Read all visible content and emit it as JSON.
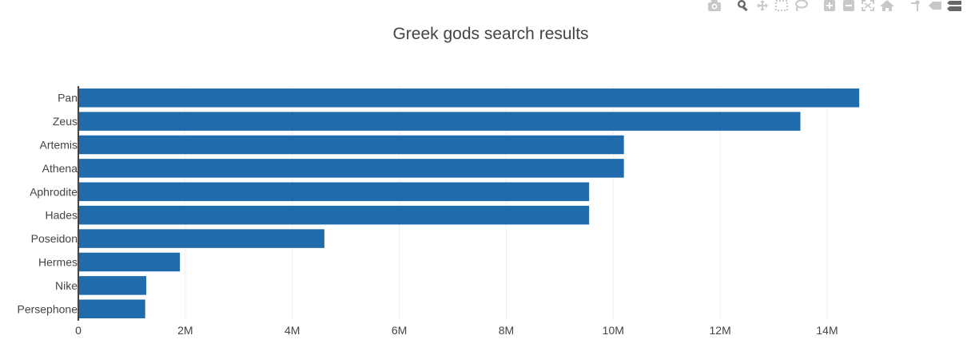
{
  "colors": {
    "bar": "#1f6bab",
    "grid": "#eeeeee",
    "axis": "#444444",
    "text": "#444444",
    "modebar": "#c8c8c8"
  },
  "modebar": {
    "icons": [
      "camera-icon",
      "zoom-icon",
      "pan-icon",
      "box-select-icon",
      "lasso-icon",
      "zoom-in-icon",
      "zoom-out-icon",
      "autoscale-icon",
      "home-icon",
      "spike-lines-icon",
      "hover-closest-icon",
      "hover-compare-icon"
    ]
  },
  "chart_data": {
    "type": "bar",
    "orientation": "horizontal",
    "title": "Greek gods search results",
    "xlabel": "",
    "ylabel": "",
    "categories": [
      "Pan",
      "Zeus",
      "Artemis",
      "Athena",
      "Aphrodite",
      "Hades",
      "Poseidon",
      "Hermes",
      "Nike",
      "Persephone"
    ],
    "values": [
      14600000,
      13500000,
      10200000,
      10200000,
      9550000,
      9550000,
      4600000,
      1900000,
      1270000,
      1250000
    ],
    "xlim": [
      0,
      15300000
    ],
    "xticks": [
      0,
      2000000,
      4000000,
      6000000,
      8000000,
      10000000,
      12000000,
      14000000
    ],
    "xtick_labels": [
      "0",
      "2M",
      "4M",
      "6M",
      "8M",
      "10M",
      "12M",
      "14M"
    ],
    "grid": true,
    "legend": "none"
  }
}
